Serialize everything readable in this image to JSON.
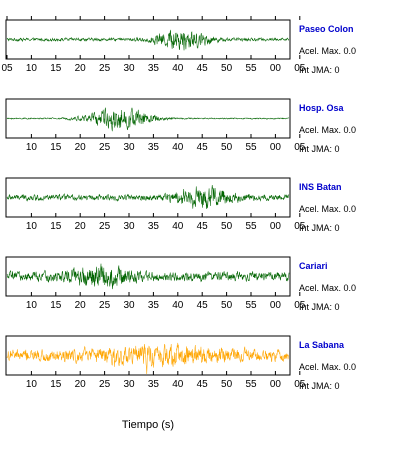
{
  "chart_data": {
    "type": "line",
    "xlabel": "Tiempo (s)",
    "grid": false,
    "panels": [
      {
        "station": "Paseo Colon",
        "accel_label": "Acel. Max. 0.0",
        "jma_label": "Int JMA: 0",
        "color": "#006400",
        "tick_labels": [
          "05",
          "10",
          "15",
          "20",
          "25",
          "30",
          "35",
          "40",
          "45",
          "50",
          "55",
          "00",
          "05"
        ],
        "ticks_on_top": true,
        "event_center": 0.62,
        "event_width": 0.13,
        "peak_fraction": 0.9,
        "noise_level": 0.12
      },
      {
        "station": "Hosp. Osa",
        "accel_label": "Acel. Max. 0.0",
        "jma_label": "Int JMA: 0",
        "color": "#006400",
        "tick_labels": [
          "10",
          "15",
          "20",
          "25",
          "30",
          "35",
          "40",
          "45",
          "50",
          "55",
          "00",
          "05"
        ],
        "ticks_on_top": false,
        "event_center": 0.4,
        "event_width": 0.16,
        "peak_fraction": 0.9,
        "noise_level": 0.05
      },
      {
        "station": "INS Batan",
        "accel_label": "Acel. Max. 0.0",
        "jma_label": "Int JMA: 0",
        "color": "#006400",
        "tick_labels": [
          "10",
          "15",
          "20",
          "25",
          "30",
          "35",
          "40",
          "45",
          "50",
          "55",
          "00",
          "05"
        ],
        "ticks_on_top": false,
        "event_center": 0.7,
        "event_width": 0.15,
        "peak_fraction": 0.95,
        "noise_level": 0.22
      },
      {
        "station": "Cariari",
        "accel_label": "Acel. Max. 0.0",
        "jma_label": "Int JMA: 0",
        "color": "#006400",
        "tick_labels": [
          "10",
          "15",
          "20",
          "25",
          "30",
          "35",
          "40",
          "45",
          "50",
          "55",
          "00",
          "05"
        ],
        "ticks_on_top": false,
        "event_center": 0.33,
        "event_width": 0.17,
        "peak_fraction": 0.95,
        "noise_level": 0.35
      },
      {
        "station": "La Sabana",
        "accel_label": "Acel. Max. 0.0",
        "jma_label": "Int JMA: 0",
        "color": "#ffa500",
        "tick_labels": [
          "10",
          "15",
          "20",
          "25",
          "30",
          "35",
          "40",
          "45",
          "50",
          "55",
          "00",
          "05"
        ],
        "ticks_on_top": false,
        "event_center": 0.55,
        "event_width": 0.35,
        "peak_fraction": 0.9,
        "noise_level": 0.45
      }
    ]
  }
}
